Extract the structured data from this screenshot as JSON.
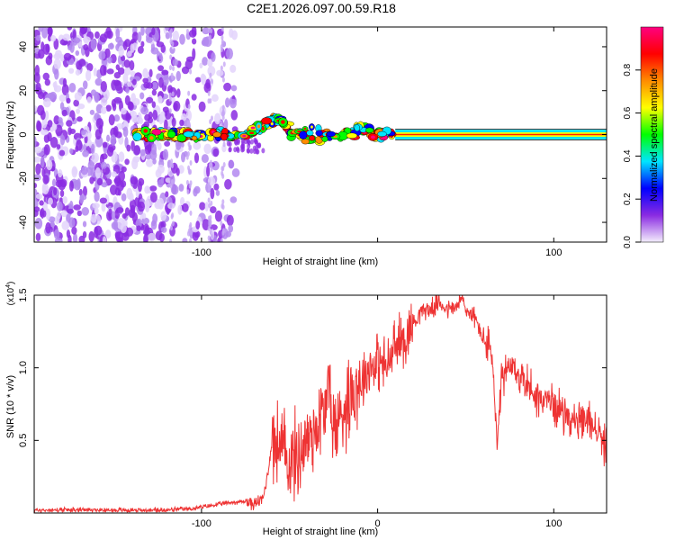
{
  "chart_data": [
    {
      "type": "heatmap",
      "title": "C2E1.2026.097.00.59.R18",
      "xlabel": "Height of straight line (km)",
      "ylabel": "Frequency (Hz)",
      "xlim": [
        -195,
        130
      ],
      "ylim": [
        -49,
        49
      ],
      "x_ticks": [
        -100,
        0,
        100
      ],
      "x_tick_labels": [
        "-100",
        "",
        "100"
      ],
      "y_ticks": [
        -40,
        -20,
        0,
        20,
        40
      ],
      "y_tick_labels": [
        "-40",
        "-20",
        "0",
        "20",
        "40"
      ],
      "colorbar": {
        "label": "Normalized spectral amplitude",
        "range": [
          0,
          1
        ],
        "ticks": [
          0.0,
          0.2,
          0.4,
          0.6,
          0.8
        ],
        "tick_labels": [
          "0.0",
          "0.2",
          "0.4",
          "0.6",
          "0.8"
        ],
        "colors": [
          "#f4eefc",
          "#8a2be2",
          "#0000ff",
          "#00e5ff",
          "#00ff00",
          "#ffff00",
          "#ff8c00",
          "#ff0000",
          "#ff0080"
        ]
      },
      "description_points": {
        "noise_region_x": [
          -195,
          -80
        ],
        "carrier_start_km": -140,
        "carrier_frequency_hz": 0,
        "carrier_bump": {
          "x": -55,
          "y": 10
        }
      }
    },
    {
      "type": "line",
      "title": "",
      "xlabel": "Height of straight line (km)",
      "ylabel": "SNR (10 * v/v)",
      "scale_note": "(x10^4)",
      "xlim": [
        -195,
        130
      ],
      "ylim": [
        0,
        1.5
      ],
      "x_ticks": [
        -100,
        0,
        100
      ],
      "x_tick_labels": [
        "-100",
        "0",
        "100"
      ],
      "y_ticks": [
        0.5,
        1.0,
        1.5
      ],
      "y_tick_labels": [
        "0.5",
        "1.0",
        "1.5"
      ],
      "line_color": "#ee3333",
      "series": [
        {
          "name": "SNR",
          "x": [
            -195,
            -170,
            -150,
            -120,
            -105,
            -95,
            -85,
            -75,
            -70,
            -65,
            -62,
            -60,
            -55,
            -50,
            -45,
            -40,
            -35,
            -30,
            -27,
            -25,
            -20,
            -15,
            -10,
            -5,
            0,
            5,
            10,
            15,
            20,
            25,
            30,
            35,
            40,
            45,
            48,
            50,
            55,
            60,
            65,
            68,
            70,
            75,
            80,
            85,
            90,
            95,
            100,
            105,
            110,
            115,
            120,
            125,
            130
          ],
          "y": [
            0.02,
            0.02,
            0.02,
            0.02,
            0.03,
            0.05,
            0.07,
            0.08,
            0.06,
            0.1,
            0.3,
            0.5,
            0.45,
            0.35,
            0.4,
            0.5,
            0.6,
            0.7,
            0.9,
            0.55,
            0.7,
            0.85,
            0.9,
            1.0,
            1.05,
            1.0,
            1.15,
            1.2,
            1.3,
            1.4,
            1.4,
            1.45,
            1.4,
            1.42,
            1.48,
            1.4,
            1.35,
            1.2,
            1.1,
            0.4,
            0.9,
            1.0,
            0.95,
            0.9,
            0.8,
            0.78,
            0.75,
            0.7,
            0.65,
            0.6,
            0.65,
            0.55,
            0.45
          ]
        }
      ]
    }
  ]
}
